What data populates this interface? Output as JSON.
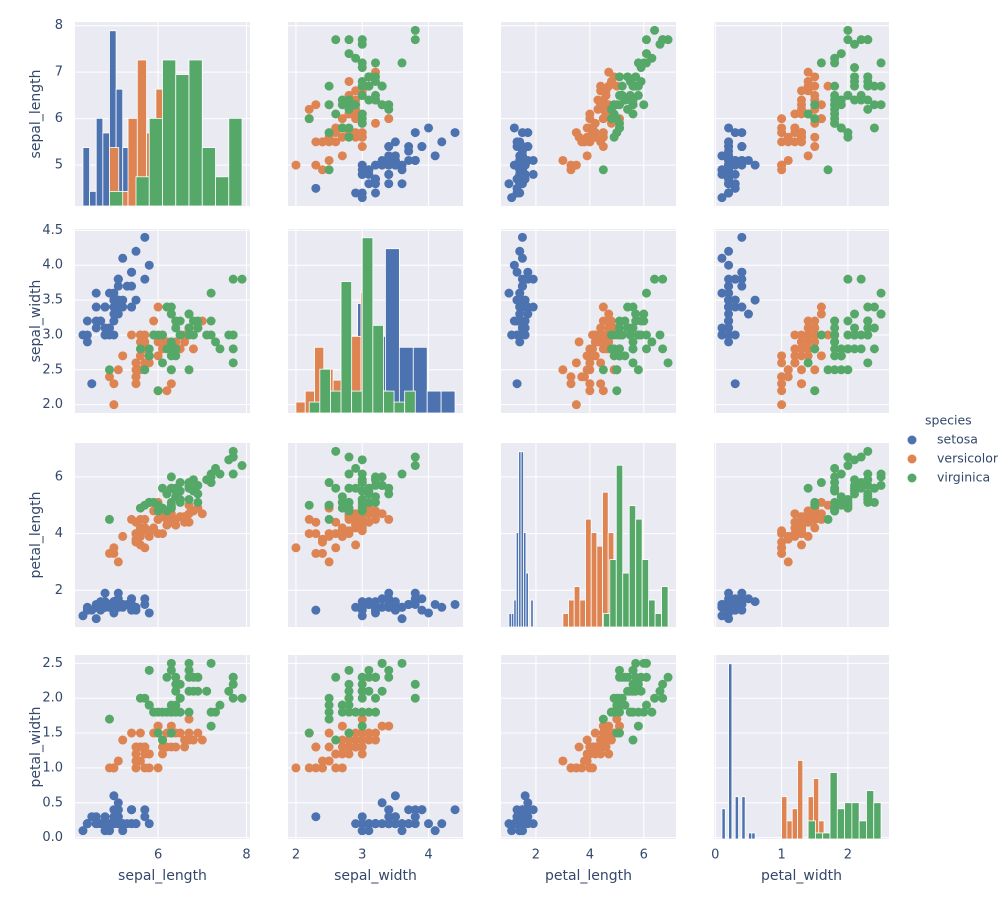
{
  "chart_data": {
    "type": "pairplot",
    "variables": [
      "sepal_length",
      "sepal_width",
      "petal_length",
      "petal_width"
    ],
    "legend_title": "species",
    "legend": "right",
    "grid": true,
    "background": "#eaeaf2",
    "bins": 10,
    "axes": [
      {
        "lim": [
          4.12,
          8.08
        ],
        "xticks": [
          6,
          8
        ],
        "yticks": [
          5,
          6,
          7,
          8
        ]
      },
      {
        "lim": [
          1.88,
          4.52
        ],
        "xticks": [
          2,
          3,
          4
        ],
        "yticks": [
          {
            "value": 2,
            "label": "2.0"
          },
          2.5,
          {
            "value": 3,
            "label": "3.0"
          },
          3.5,
          {
            "value": 4,
            "label": "4.0"
          },
          4.5
        ]
      },
      {
        "lim": [
          0.705,
          7.195
        ],
        "xticks": [
          2,
          4,
          6
        ],
        "yticks": [
          2,
          4,
          6
        ]
      },
      {
        "lim": [
          -0.02,
          2.62
        ],
        "xticks": [
          0,
          1,
          2
        ],
        "yticks": [
          {
            "value": 0,
            "label": "0.0"
          },
          0.5,
          {
            "value": 1,
            "label": "1.0"
          },
          1.5,
          {
            "value": 2,
            "label": "2.0"
          },
          2.5
        ]
      }
    ],
    "series": [
      {
        "name": "setosa",
        "color": "#4c72b0",
        "values": [
          [
            5.1,
            4.9,
            4.7,
            4.6,
            5.0,
            5.4,
            4.6,
            5.0,
            4.4,
            4.9,
            5.4,
            4.8,
            4.8,
            4.3,
            5.8,
            5.7,
            5.4,
            5.1,
            5.7,
            5.1,
            5.4,
            5.1,
            4.6,
            5.1,
            4.8,
            5.0,
            5.0,
            5.2,
            5.2,
            4.7,
            4.8,
            5.4,
            5.2,
            5.5,
            4.9,
            5.0,
            5.5,
            4.9,
            4.4,
            5.1,
            5.0,
            4.5,
            4.4,
            5.0,
            5.1,
            4.8,
            5.1,
            4.6,
            5.3,
            5.0
          ],
          [
            3.5,
            3.0,
            3.2,
            3.1,
            3.6,
            3.9,
            3.4,
            3.4,
            2.9,
            3.1,
            3.7,
            3.4,
            3.0,
            3.0,
            4.0,
            4.4,
            3.9,
            3.5,
            3.8,
            3.8,
            3.4,
            3.7,
            3.6,
            3.3,
            3.4,
            3.0,
            3.4,
            3.5,
            3.4,
            3.2,
            3.1,
            3.4,
            4.1,
            4.2,
            3.1,
            3.2,
            3.5,
            3.6,
            3.0,
            3.4,
            3.5,
            2.3,
            3.2,
            3.5,
            3.8,
            3.0,
            3.8,
            3.2,
            3.7,
            3.3
          ],
          [
            1.4,
            1.4,
            1.3,
            1.5,
            1.4,
            1.7,
            1.4,
            1.5,
            1.4,
            1.5,
            1.5,
            1.6,
            1.4,
            1.1,
            1.2,
            1.5,
            1.3,
            1.4,
            1.7,
            1.5,
            1.7,
            1.5,
            1.0,
            1.7,
            1.9,
            1.6,
            1.6,
            1.5,
            1.4,
            1.6,
            1.6,
            1.5,
            1.5,
            1.4,
            1.5,
            1.2,
            1.3,
            1.4,
            1.3,
            1.5,
            1.3,
            1.3,
            1.3,
            1.6,
            1.9,
            1.4,
            1.6,
            1.4,
            1.5,
            1.4
          ],
          [
            0.2,
            0.2,
            0.2,
            0.2,
            0.2,
            0.4,
            0.3,
            0.2,
            0.2,
            0.1,
            0.2,
            0.2,
            0.1,
            0.1,
            0.2,
            0.4,
            0.4,
            0.3,
            0.3,
            0.3,
            0.2,
            0.4,
            0.2,
            0.5,
            0.2,
            0.2,
            0.4,
            0.2,
            0.2,
            0.2,
            0.2,
            0.4,
            0.1,
            0.2,
            0.2,
            0.2,
            0.2,
            0.1,
            0.2,
            0.2,
            0.3,
            0.3,
            0.2,
            0.6,
            0.4,
            0.3,
            0.2,
            0.2,
            0.2,
            0.2
          ]
        ]
      },
      {
        "name": "versicolor",
        "color": "#dd8452",
        "values": [
          [
            7.0,
            6.4,
            6.9,
            5.5,
            6.5,
            5.7,
            6.3,
            4.9,
            6.6,
            5.2,
            5.0,
            5.9,
            6.0,
            6.1,
            5.6,
            6.7,
            5.6,
            5.8,
            6.2,
            5.6,
            5.9,
            6.1,
            6.3,
            6.1,
            6.4,
            6.6,
            6.8,
            6.7,
            6.0,
            5.7,
            5.5,
            5.5,
            5.8,
            6.0,
            5.4,
            6.0,
            6.7,
            6.3,
            5.6,
            5.5,
            5.5,
            6.1,
            5.8,
            5.0,
            5.6,
            5.7,
            5.7,
            6.2,
            5.1,
            5.7
          ],
          [
            3.2,
            3.2,
            3.1,
            2.3,
            2.8,
            2.8,
            3.3,
            2.4,
            2.9,
            2.7,
            2.0,
            3.0,
            2.2,
            2.9,
            2.9,
            3.1,
            3.0,
            2.7,
            2.2,
            2.5,
            3.2,
            2.8,
            2.5,
            2.8,
            2.9,
            3.0,
            2.8,
            3.0,
            2.9,
            2.6,
            2.4,
            2.4,
            2.7,
            2.7,
            3.0,
            3.4,
            3.1,
            2.3,
            3.0,
            2.5,
            2.6,
            3.0,
            2.6,
            2.3,
            2.7,
            3.0,
            2.9,
            2.9,
            2.5,
            2.8
          ],
          [
            4.7,
            4.5,
            4.9,
            4.0,
            4.6,
            4.5,
            4.7,
            3.3,
            4.6,
            3.9,
            3.5,
            4.2,
            4.0,
            4.7,
            3.6,
            4.4,
            4.5,
            4.1,
            4.5,
            3.9,
            4.8,
            4.0,
            4.9,
            4.7,
            4.3,
            4.4,
            4.8,
            5.0,
            4.5,
            3.5,
            3.8,
            3.7,
            3.9,
            5.1,
            4.5,
            4.5,
            4.7,
            4.4,
            4.1,
            4.0,
            4.4,
            4.6,
            4.0,
            3.3,
            4.2,
            4.2,
            4.2,
            4.3,
            3.0,
            4.1
          ],
          [
            1.4,
            1.5,
            1.5,
            1.3,
            1.5,
            1.3,
            1.6,
            1.0,
            1.3,
            1.4,
            1.0,
            1.5,
            1.0,
            1.4,
            1.3,
            1.4,
            1.5,
            1.0,
            1.5,
            1.1,
            1.8,
            1.3,
            1.5,
            1.2,
            1.3,
            1.4,
            1.4,
            1.7,
            1.5,
            1.0,
            1.1,
            1.0,
            1.2,
            1.6,
            1.5,
            1.6,
            1.5,
            1.3,
            1.3,
            1.3,
            1.2,
            1.4,
            1.2,
            1.0,
            1.3,
            1.2,
            1.3,
            1.3,
            1.1,
            1.3
          ]
        ]
      },
      {
        "name": "virginica",
        "color": "#55a868",
        "values": [
          [
            6.3,
            5.8,
            7.1,
            6.3,
            6.5,
            7.6,
            4.9,
            7.3,
            6.7,
            7.2,
            6.5,
            6.4,
            6.8,
            5.7,
            5.8,
            6.4,
            6.5,
            7.7,
            7.7,
            6.0,
            6.9,
            5.6,
            7.7,
            6.3,
            6.7,
            7.2,
            6.2,
            6.1,
            6.4,
            7.2,
            7.4,
            7.9,
            6.4,
            6.3,
            6.1,
            7.7,
            6.3,
            6.4,
            6.0,
            6.9,
            6.7,
            6.9,
            5.8,
            6.8,
            6.7,
            6.7,
            6.3,
            6.5,
            6.2,
            5.9
          ],
          [
            3.3,
            2.7,
            3.0,
            2.9,
            3.0,
            3.0,
            2.5,
            2.9,
            2.5,
            3.6,
            3.2,
            2.7,
            3.0,
            2.5,
            2.8,
            3.2,
            3.0,
            3.8,
            2.6,
            2.2,
            3.2,
            2.8,
            2.8,
            2.7,
            3.3,
            3.2,
            2.8,
            3.0,
            2.8,
            3.0,
            2.8,
            3.8,
            2.8,
            2.8,
            2.6,
            3.0,
            3.4,
            3.1,
            3.0,
            3.1,
            3.1,
            3.1,
            2.7,
            3.2,
            3.3,
            3.0,
            2.5,
            3.0,
            3.4,
            3.0
          ],
          [
            6.0,
            5.1,
            5.9,
            5.6,
            5.8,
            6.6,
            4.5,
            6.3,
            5.8,
            6.1,
            5.1,
            5.3,
            5.5,
            5.0,
            5.1,
            5.3,
            5.5,
            6.7,
            6.9,
            5.0,
            5.7,
            4.9,
            6.7,
            4.9,
            5.7,
            6.0,
            4.8,
            4.9,
            5.6,
            5.8,
            6.1,
            6.4,
            5.6,
            5.1,
            5.6,
            6.1,
            5.6,
            5.5,
            4.8,
            5.4,
            5.6,
            5.1,
            5.1,
            5.9,
            5.7,
            5.2,
            5.0,
            5.2,
            5.4,
            5.1
          ],
          [
            2.5,
            1.9,
            2.1,
            1.8,
            2.2,
            2.1,
            1.7,
            1.8,
            1.8,
            2.5,
            2.0,
            1.9,
            2.1,
            2.0,
            2.4,
            2.3,
            1.8,
            2.2,
            2.3,
            1.5,
            2.3,
            2.0,
            2.0,
            1.8,
            2.1,
            1.8,
            1.8,
            1.8,
            2.1,
            1.6,
            1.9,
            2.0,
            2.2,
            1.5,
            1.4,
            2.3,
            2.4,
            1.8,
            1.8,
            2.1,
            2.4,
            2.3,
            1.9,
            2.3,
            2.5,
            2.3,
            1.9,
            2.0,
            2.3,
            1.8
          ]
        ]
      }
    ]
  }
}
